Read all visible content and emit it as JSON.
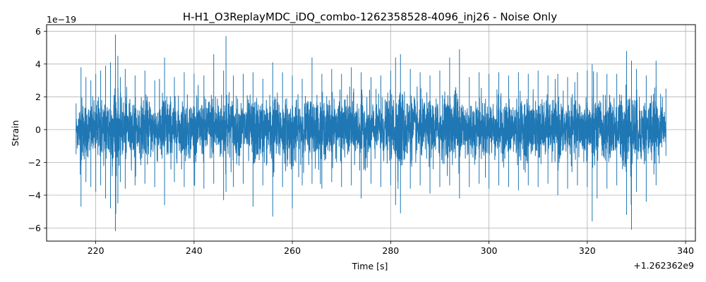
{
  "chart_data": {
    "type": "line",
    "title": "H-H1_O3ReplayMDC_iDQ_combo-1262358528-4096_inj26 - Noise Only",
    "xlabel": "Time [s]",
    "ylabel": "Strain",
    "x_offset_label": "+1.262362e9",
    "y_scale_label": "1e−19",
    "xlim": [
      210,
      342
    ],
    "ylim": [
      -6.8,
      6.4
    ],
    "xticks": [
      220,
      240,
      260,
      280,
      300,
      320,
      340
    ],
    "yticks": [
      -6,
      -4,
      -2,
      0,
      2,
      4,
      6
    ],
    "grid": true,
    "series": [
      {
        "color": "#1f77b4",
        "x_range": [
          216.0,
          336.0
        ],
        "envelope": {
          "x": [
            216,
            217,
            218,
            219,
            220,
            221,
            222,
            223,
            224,
            224.5,
            225,
            226,
            228,
            230,
            232,
            234,
            236,
            238,
            240,
            242,
            244,
            246,
            246.5,
            248,
            250,
            252,
            254,
            256,
            258,
            260,
            262,
            264,
            266,
            268,
            270,
            272,
            274,
            276,
            278,
            280,
            281,
            282,
            284,
            286,
            288,
            290,
            292,
            294,
            296,
            298,
            300,
            302,
            304,
            306,
            308,
            310,
            312,
            314,
            316,
            318,
            320,
            321,
            322,
            324,
            326,
            328,
            329,
            330,
            332,
            334,
            336
          ],
          "upper": [
            1.6,
            3.8,
            3.2,
            3.0,
            3.4,
            3.6,
            3.9,
            4.1,
            5.8,
            4.5,
            3.2,
            3.7,
            3.3,
            3.6,
            3.0,
            4.4,
            3.2,
            3.5,
            3.4,
            3.3,
            4.6,
            3.6,
            5.7,
            3.3,
            3.4,
            3.5,
            3.1,
            4.1,
            3.5,
            3.3,
            3.1,
            4.4,
            3.4,
            3.7,
            3.4,
            3.8,
            3.5,
            3.2,
            3.3,
            3.6,
            4.4,
            4.6,
            3.7,
            3.5,
            3.3,
            3.6,
            4.4,
            4.9,
            3.2,
            3.5,
            3.4,
            3.5,
            3.3,
            3.5,
            3.4,
            3.6,
            3.3,
            3.4,
            3.2,
            3.5,
            3.6,
            4.0,
            3.5,
            3.4,
            3.4,
            4.8,
            4.2,
            3.7,
            3.3,
            4.2,
            2.5
          ],
          "lower": [
            -1.5,
            -4.7,
            -3.2,
            -3.5,
            -3.8,
            -3.4,
            -4.2,
            -4.8,
            -6.2,
            -4.5,
            -3.2,
            -3.6,
            -3.4,
            -3.3,
            -3.5,
            -4.6,
            -3.2,
            -3.5,
            -3.4,
            -3.6,
            -3.3,
            -4.3,
            -3.8,
            -3.5,
            -3.3,
            -4.7,
            -3.4,
            -5.3,
            -3.5,
            -4.8,
            -3.4,
            -3.3,
            -3.6,
            -3.2,
            -3.5,
            -3.4,
            -4.2,
            -3.3,
            -3.5,
            -3.4,
            -4.6,
            -5.1,
            -3.6,
            -3.4,
            -3.9,
            -3.5,
            -3.4,
            -4.2,
            -3.5,
            -3.3,
            -3.6,
            -3.4,
            -3.5,
            -3.7,
            -3.4,
            -3.5,
            -3.3,
            -4.0,
            -3.6,
            -3.4,
            -3.5,
            -5.6,
            -4.2,
            -3.6,
            -3.4,
            -5.2,
            -6.1,
            -3.8,
            -4.4,
            -3.4,
            -1.6
          ]
        }
      }
    ]
  }
}
